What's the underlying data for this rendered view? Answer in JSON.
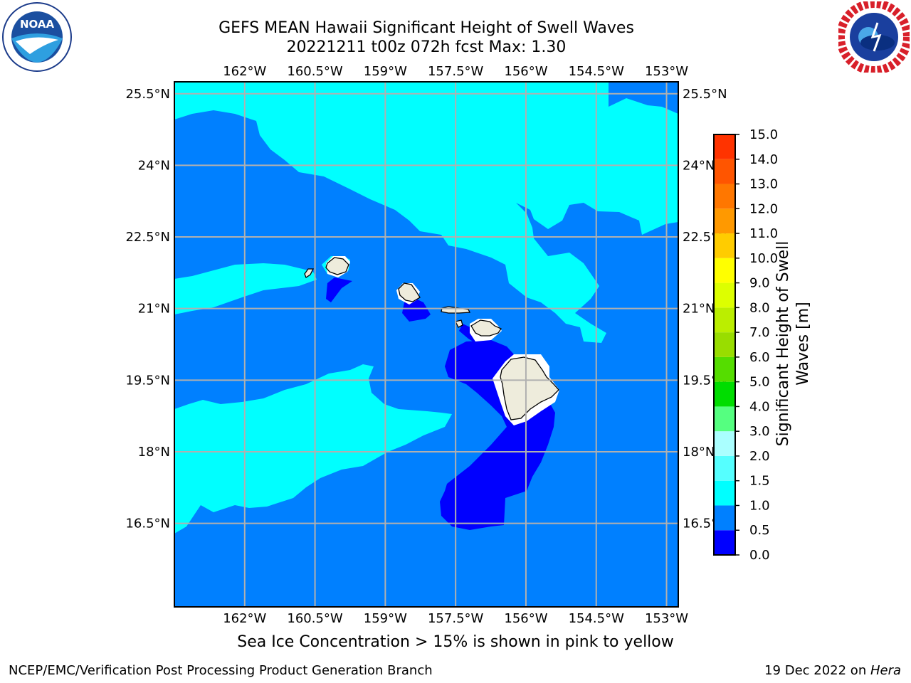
{
  "title": {
    "line1": "GEFS MEAN Hawaii Significant Height of Swell Waves",
    "line2": "20221211 t00z 072h fcst   Max: 1.30"
  },
  "logos": {
    "left": "noaa-logo",
    "right": "nws-logo"
  },
  "map": {
    "lon_range": [
      -163.5,
      -152.75
    ],
    "lat_range": [
      14.75,
      25.75
    ],
    "lon_ticks": [
      "162°W",
      "160.5°W",
      "159°W",
      "157.5°W",
      "156°W",
      "154.5°W",
      "153°W"
    ],
    "lat_ticks": [
      "25.5°N",
      "24°N",
      "22.5°N",
      "21°N",
      "19.5°N",
      "18°N",
      "16.5°N"
    ],
    "colors": {
      "ocean_1_0": "#0080ff",
      "ocean_0_5": "#0000ff",
      "ocean_1_5": "#00ffff",
      "land": "#eeecdc",
      "grid": "#b0b0b0"
    }
  },
  "colorbar": {
    "label": "Significant Height of Swell Waves [m]",
    "ticks": [
      "0.0",
      "0.5",
      "1.0",
      "1.5",
      "2.0",
      "3.0",
      "4.0",
      "5.0",
      "6.0",
      "7.0",
      "8.0",
      "9.0",
      "10.0",
      "11.0",
      "12.0",
      "13.0",
      "14.0",
      "15.0"
    ],
    "colors": [
      "#0000ff",
      "#0080ff",
      "#00ffff",
      "#55ffff",
      "#aaffff",
      "#55ff80",
      "#00dd00",
      "#55dd00",
      "#99dd00",
      "#bbee00",
      "#ddff00",
      "#ffff00",
      "#ffcc00",
      "#ff9900",
      "#ff7700",
      "#ff5500",
      "#ff3300"
    ]
  },
  "footer": {
    "note": "Sea Ice Concentration > 15% is shown in pink to yellow",
    "left": "NCEP/EMC/Verification Post Processing Product Generation Branch",
    "right_prefix": "19 Dec 2022 on ",
    "right_host": "Hera"
  }
}
